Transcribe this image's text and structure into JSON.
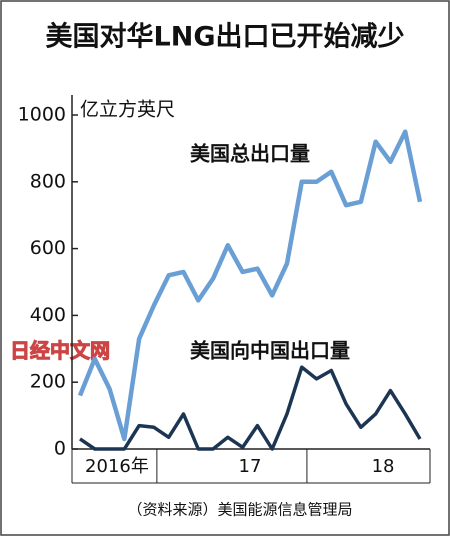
{
  "chart_data": {
    "type": "line",
    "title": "美国对华LNG出口已开始减少",
    "y_unit": "亿立方英尺",
    "source": "（资料来源）美国能源信息管理局",
    "watermark": "日经中文网",
    "categories": [
      null,
      null,
      null,
      null,
      null,
      null,
      null,
      null,
      null,
      null,
      null,
      null,
      null,
      null,
      null,
      null,
      null,
      null,
      null,
      null,
      null,
      null,
      null,
      null
    ],
    "series": [
      {
        "name": "美国总出口量",
        "color": "#6a9fd6",
        "values": [
          160,
          270,
          180,
          30,
          330,
          430,
          520,
          530,
          445,
          510,
          610,
          530,
          540,
          460,
          555,
          800,
          800,
          830,
          730,
          740,
          920,
          860,
          950,
          740
        ]
      },
      {
        "name": "美国向中国出口量",
        "color": "#1c3553",
        "values": [
          30,
          0,
          0,
          0,
          70,
          65,
          35,
          105,
          0,
          0,
          35,
          5,
          70,
          0,
          105,
          245,
          210,
          235,
          135,
          65,
          105,
          175,
          105,
          30
        ]
      }
    ],
    "ylim": [
      0,
      1000
    ],
    "yticks": [
      0,
      200,
      400,
      600,
      800,
      1000
    ],
    "xticks": [
      {
        "value": 2.5,
        "label": "2016年"
      },
      {
        "value": 11.5,
        "label": "17"
      },
      {
        "value": 20.5,
        "label": "18"
      }
    ]
  }
}
